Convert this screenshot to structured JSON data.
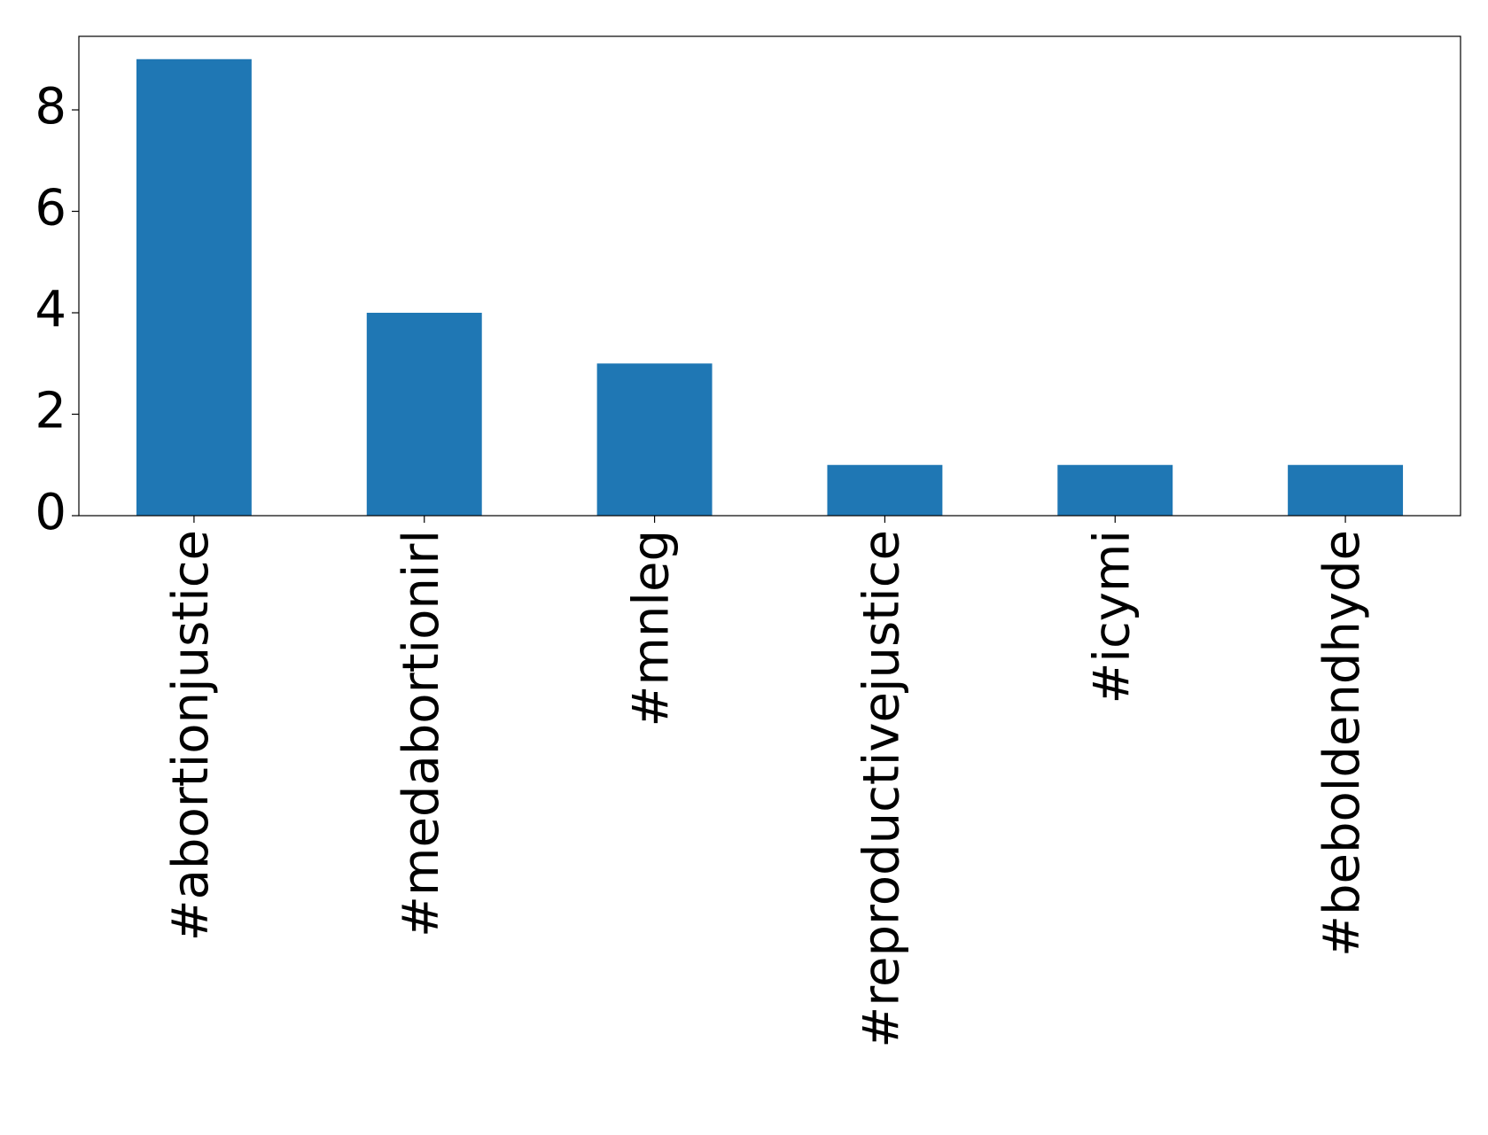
{
  "chart_data": {
    "type": "bar",
    "categories": [
      "#abortionjustice",
      "#medabortionirl",
      "#mnleg",
      "#reproductivejustice",
      "#icymi",
      "#beboldendhyde"
    ],
    "values": [
      9,
      4,
      3,
      1,
      1,
      1
    ],
    "color": "#1f77b4",
    "ylim": [
      0,
      9.45
    ],
    "yticks": [
      0,
      2,
      4,
      6,
      8
    ],
    "grid": false
  }
}
